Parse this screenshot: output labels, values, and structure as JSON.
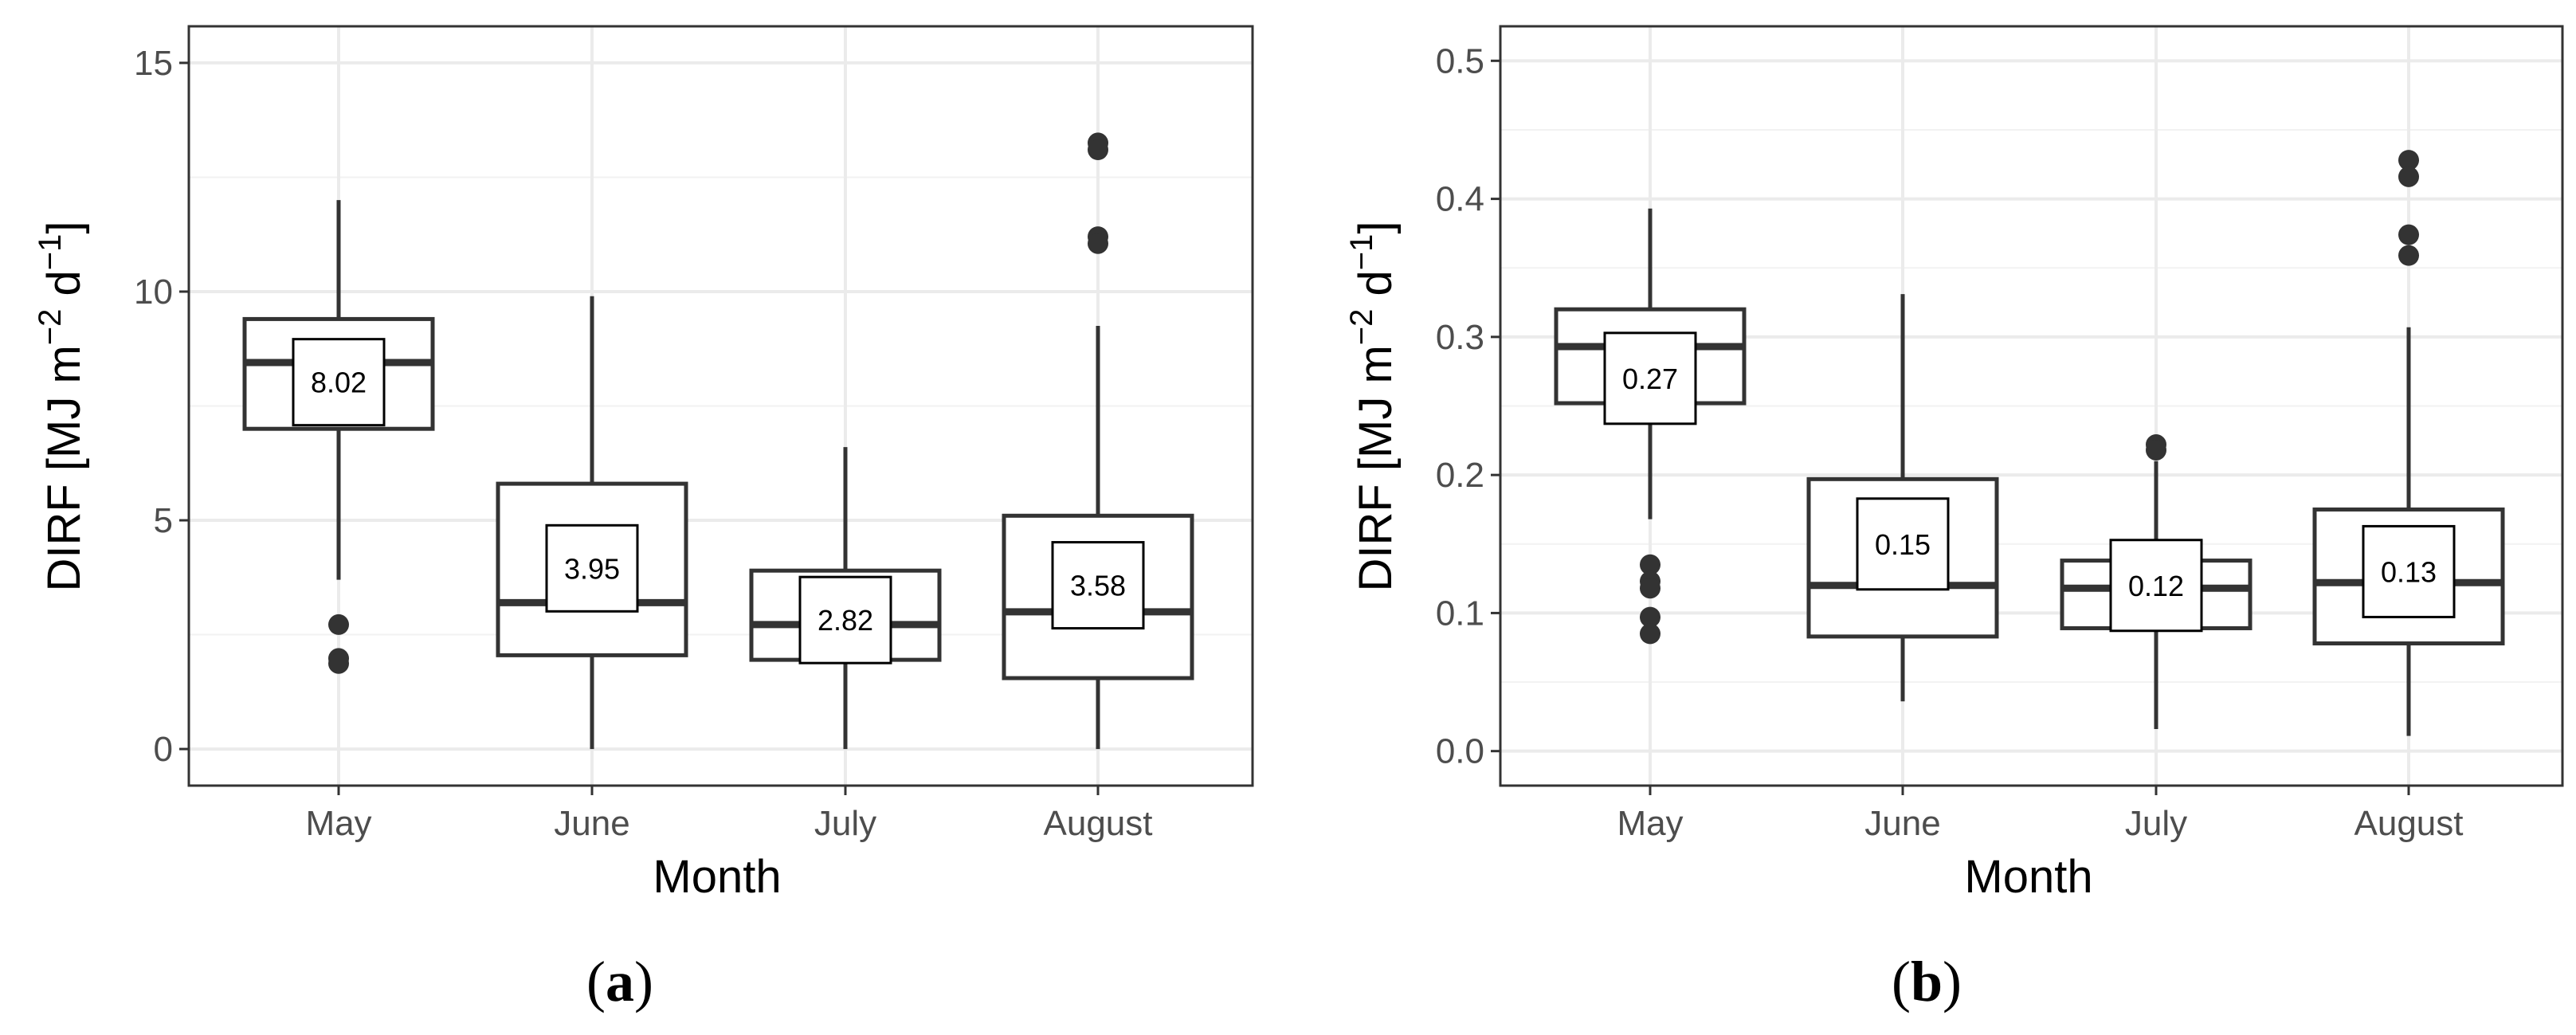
{
  "panels": [
    {
      "label": "a",
      "ylabel": "DIRF [MJ  m−2 d−1]",
      "ylabel_main": "DIRF [MJ  m",
      "ylabel_sup1": "−2",
      "ylabel_mid": " d",
      "ylabel_sup2": "−1",
      "ylabel_end": "]",
      "xlabel": "Month",
      "yticks": [
        "0",
        "5",
        "10",
        "15"
      ]
    },
    {
      "label": "b",
      "ylabel": "DIRF [MJ  m−2 d−1]",
      "ylabel_main": "DIRF [MJ  m",
      "ylabel_sup1": "−2",
      "ylabel_mid": " d",
      "ylabel_sup2": "−1",
      "ylabel_end": "]",
      "xlabel": "Month",
      "yticks": [
        "0.0",
        "0.1",
        "0.2",
        "0.3",
        "0.4",
        "0.5"
      ]
    }
  ],
  "chart_data": [
    {
      "type": "box",
      "xlabel": "Month",
      "ylabel": "DIRF [MJ m−2 d−1]",
      "categories": [
        "May",
        "June",
        "July",
        "August"
      ],
      "ylim": [
        -0.8,
        15.8
      ],
      "yticks": [
        0,
        5,
        10,
        15
      ],
      "grid": true,
      "boxes": [
        {
          "category": "May",
          "whisker_low": 3.7,
          "q1": 7.0,
          "median": 8.45,
          "q3": 9.4,
          "whisker_high": 12.0,
          "outliers": [
            2.72,
            1.98,
            1.87
          ],
          "mean": 8.02
        },
        {
          "category": "June",
          "whisker_low": 0.0,
          "q1": 2.05,
          "median": 3.2,
          "q3": 5.8,
          "whisker_high": 9.9,
          "outliers": [],
          "mean": 3.95
        },
        {
          "category": "July",
          "whisker_low": 0.0,
          "q1": 1.95,
          "median": 2.72,
          "q3": 3.9,
          "whisker_high": 6.6,
          "outliers": [],
          "mean": 2.82
        },
        {
          "category": "August",
          "whisker_low": 0.0,
          "q1": 1.55,
          "median": 3.0,
          "q3": 5.1,
          "whisker_high": 9.25,
          "outliers": [
            13.25,
            13.1,
            11.2,
            11.05
          ],
          "mean": 3.58
        }
      ]
    },
    {
      "type": "box",
      "xlabel": "Month",
      "ylabel": "DIRF [MJ m−2 d−1]",
      "categories": [
        "May",
        "June",
        "July",
        "August"
      ],
      "ylim": [
        -0.025,
        0.525
      ],
      "yticks": [
        0.0,
        0.1,
        0.2,
        0.3,
        0.4,
        0.5
      ],
      "grid": true,
      "boxes": [
        {
          "category": "May",
          "whisker_low": 0.168,
          "q1": 0.252,
          "median": 0.293,
          "q3": 0.32,
          "whisker_high": 0.393,
          "outliers": [
            0.135,
            0.123,
            0.118,
            0.097,
            0.085
          ],
          "mean": 0.27
        },
        {
          "category": "June",
          "whisker_low": 0.036,
          "q1": 0.083,
          "median": 0.12,
          "q3": 0.197,
          "whisker_high": 0.331,
          "outliers": [],
          "mean": 0.15
        },
        {
          "category": "July",
          "whisker_low": 0.016,
          "q1": 0.089,
          "median": 0.118,
          "q3": 0.138,
          "whisker_high": 0.21,
          "outliers": [
            0.222,
            0.218
          ],
          "mean": 0.12
        },
        {
          "category": "August",
          "whisker_low": 0.011,
          "q1": 0.078,
          "median": 0.122,
          "q3": 0.175,
          "whisker_high": 0.307,
          "outliers": [
            0.428,
            0.416,
            0.374,
            0.359
          ],
          "mean": 0.13
        }
      ]
    }
  ]
}
